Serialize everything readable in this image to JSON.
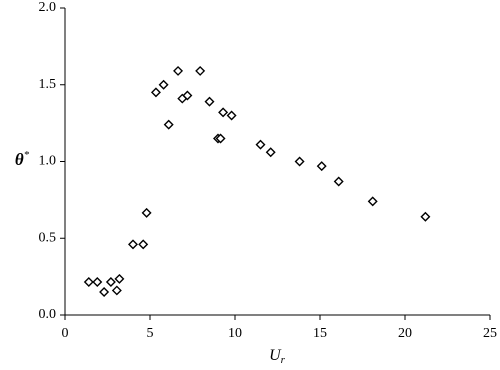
{
  "chart_data": {
    "type": "scatter",
    "xlabel": {
      "text": "U",
      "subscript": "r"
    },
    "ylabel": {
      "text": "θ",
      "superscript": "*"
    },
    "series": [
      {
        "color": "#000000",
        "x": [
          1.4,
          1.9,
          2.3,
          2.7,
          3.05,
          3.2,
          4.0,
          4.6,
          4.8,
          5.35,
          5.8,
          6.1,
          6.65,
          6.9,
          7.2,
          7.95,
          8.5,
          9.0,
          9.15,
          9.3,
          9.8,
          11.5,
          12.1,
          13.8,
          15.1,
          16.1,
          18.1,
          21.2
        ],
        "values": [
          0.215,
          0.215,
          0.15,
          0.215,
          0.16,
          0.235,
          0.46,
          0.46,
          0.665,
          1.45,
          1.5,
          1.24,
          1.59,
          1.41,
          1.43,
          1.59,
          1.39,
          1.15,
          1.15,
          1.32,
          1.3,
          1.11,
          1.06,
          1.0,
          0.97,
          0.87,
          0.74,
          0.64
        ]
      }
    ],
    "xlim": [
      0,
      25
    ],
    "xticks": [
      0,
      5,
      10,
      15,
      20,
      25
    ],
    "ylim": [
      0,
      2
    ],
    "yticks": [
      {
        "value": 0,
        "label": "0.0"
      },
      {
        "value": 0.5,
        "label": "0.5"
      },
      {
        "value": 1,
        "label": "1.0"
      },
      {
        "value": 1.5,
        "label": "1.5"
      },
      {
        "value": 2,
        "label": "2.0"
      }
    ],
    "grid": false
  }
}
